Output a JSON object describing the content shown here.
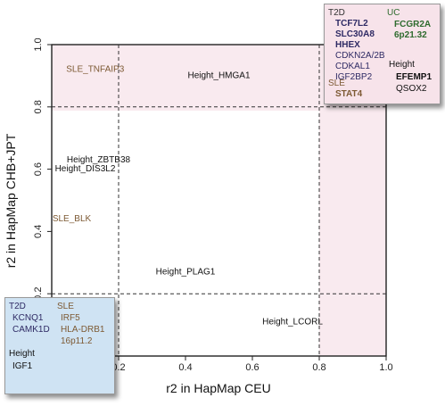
{
  "colors": {
    "t2d": "#2e2a64",
    "sle": "#7d5a34",
    "uc": "#2e6b2e",
    "height": "#111111",
    "highlight_fill": "#f9eaef",
    "box_top": "#f7e3ea",
    "box_bottom": "#cfe3f3"
  },
  "chart_data": {
    "type": "scatter",
    "xlabel": "r2 in HapMap CEU",
    "ylabel": "r2 in HapMap CHB+JPT",
    "xlim": [
      0,
      1.0
    ],
    "ylim": [
      0,
      1.0
    ],
    "x_ticks": [
      "0.2",
      "0.4",
      "0.6",
      "0.8",
      "1.0"
    ],
    "y_ticks": [
      "0.2",
      "0.4",
      "0.6",
      "0.8",
      "1.0"
    ],
    "reference_lines": {
      "x": [
        0.2,
        0.8
      ],
      "y": [
        0.2,
        0.8
      ]
    },
    "points": [
      {
        "label": "SLE_TNFAIP3",
        "group": "SLE",
        "x": 0.13,
        "y": 0.92
      },
      {
        "label": "Height_HMGA1",
        "group": "Height",
        "x": 0.5,
        "y": 0.9
      },
      {
        "label": "Height_ZBTB38",
        "group": "Height",
        "x": 0.14,
        "y": 0.63
      },
      {
        "label": "Height_DIS3L2",
        "group": "Height",
        "x": 0.1,
        "y": 0.6
      },
      {
        "label": "SLE_BLK",
        "group": "SLE",
        "x": 0.06,
        "y": 0.44
      },
      {
        "label": "Height_PLAG1",
        "group": "Height",
        "x": 0.4,
        "y": 0.27
      },
      {
        "label": "Height_LCORL",
        "group": "Height",
        "x": 0.72,
        "y": 0.11
      }
    ]
  },
  "box_top": {
    "t2d_label": "T2D",
    "t2d_genes": [
      "TCF7L2",
      "SLC30A8",
      "HHEX",
      "CDKN2A/2B",
      "CDKAL1",
      "IGF2BP2"
    ],
    "uc_label": "UC",
    "uc_genes": [
      "FCGR2A",
      "6p21.32"
    ],
    "height_label": "Height",
    "height_genes": [
      "EFEMP1",
      "QSOX2"
    ],
    "sle_label": "SLE",
    "sle_genes": [
      "STAT4"
    ]
  },
  "box_bottom": {
    "t2d_label": "T2D",
    "t2d_genes": [
      "KCNQ1",
      "CAMK1D"
    ],
    "sle_label": "SLE",
    "sle_genes": [
      "IRF5",
      "HLA-DRB1",
      "16p11.2"
    ],
    "height_label": "Height",
    "height_genes": [
      "IGF1"
    ]
  }
}
